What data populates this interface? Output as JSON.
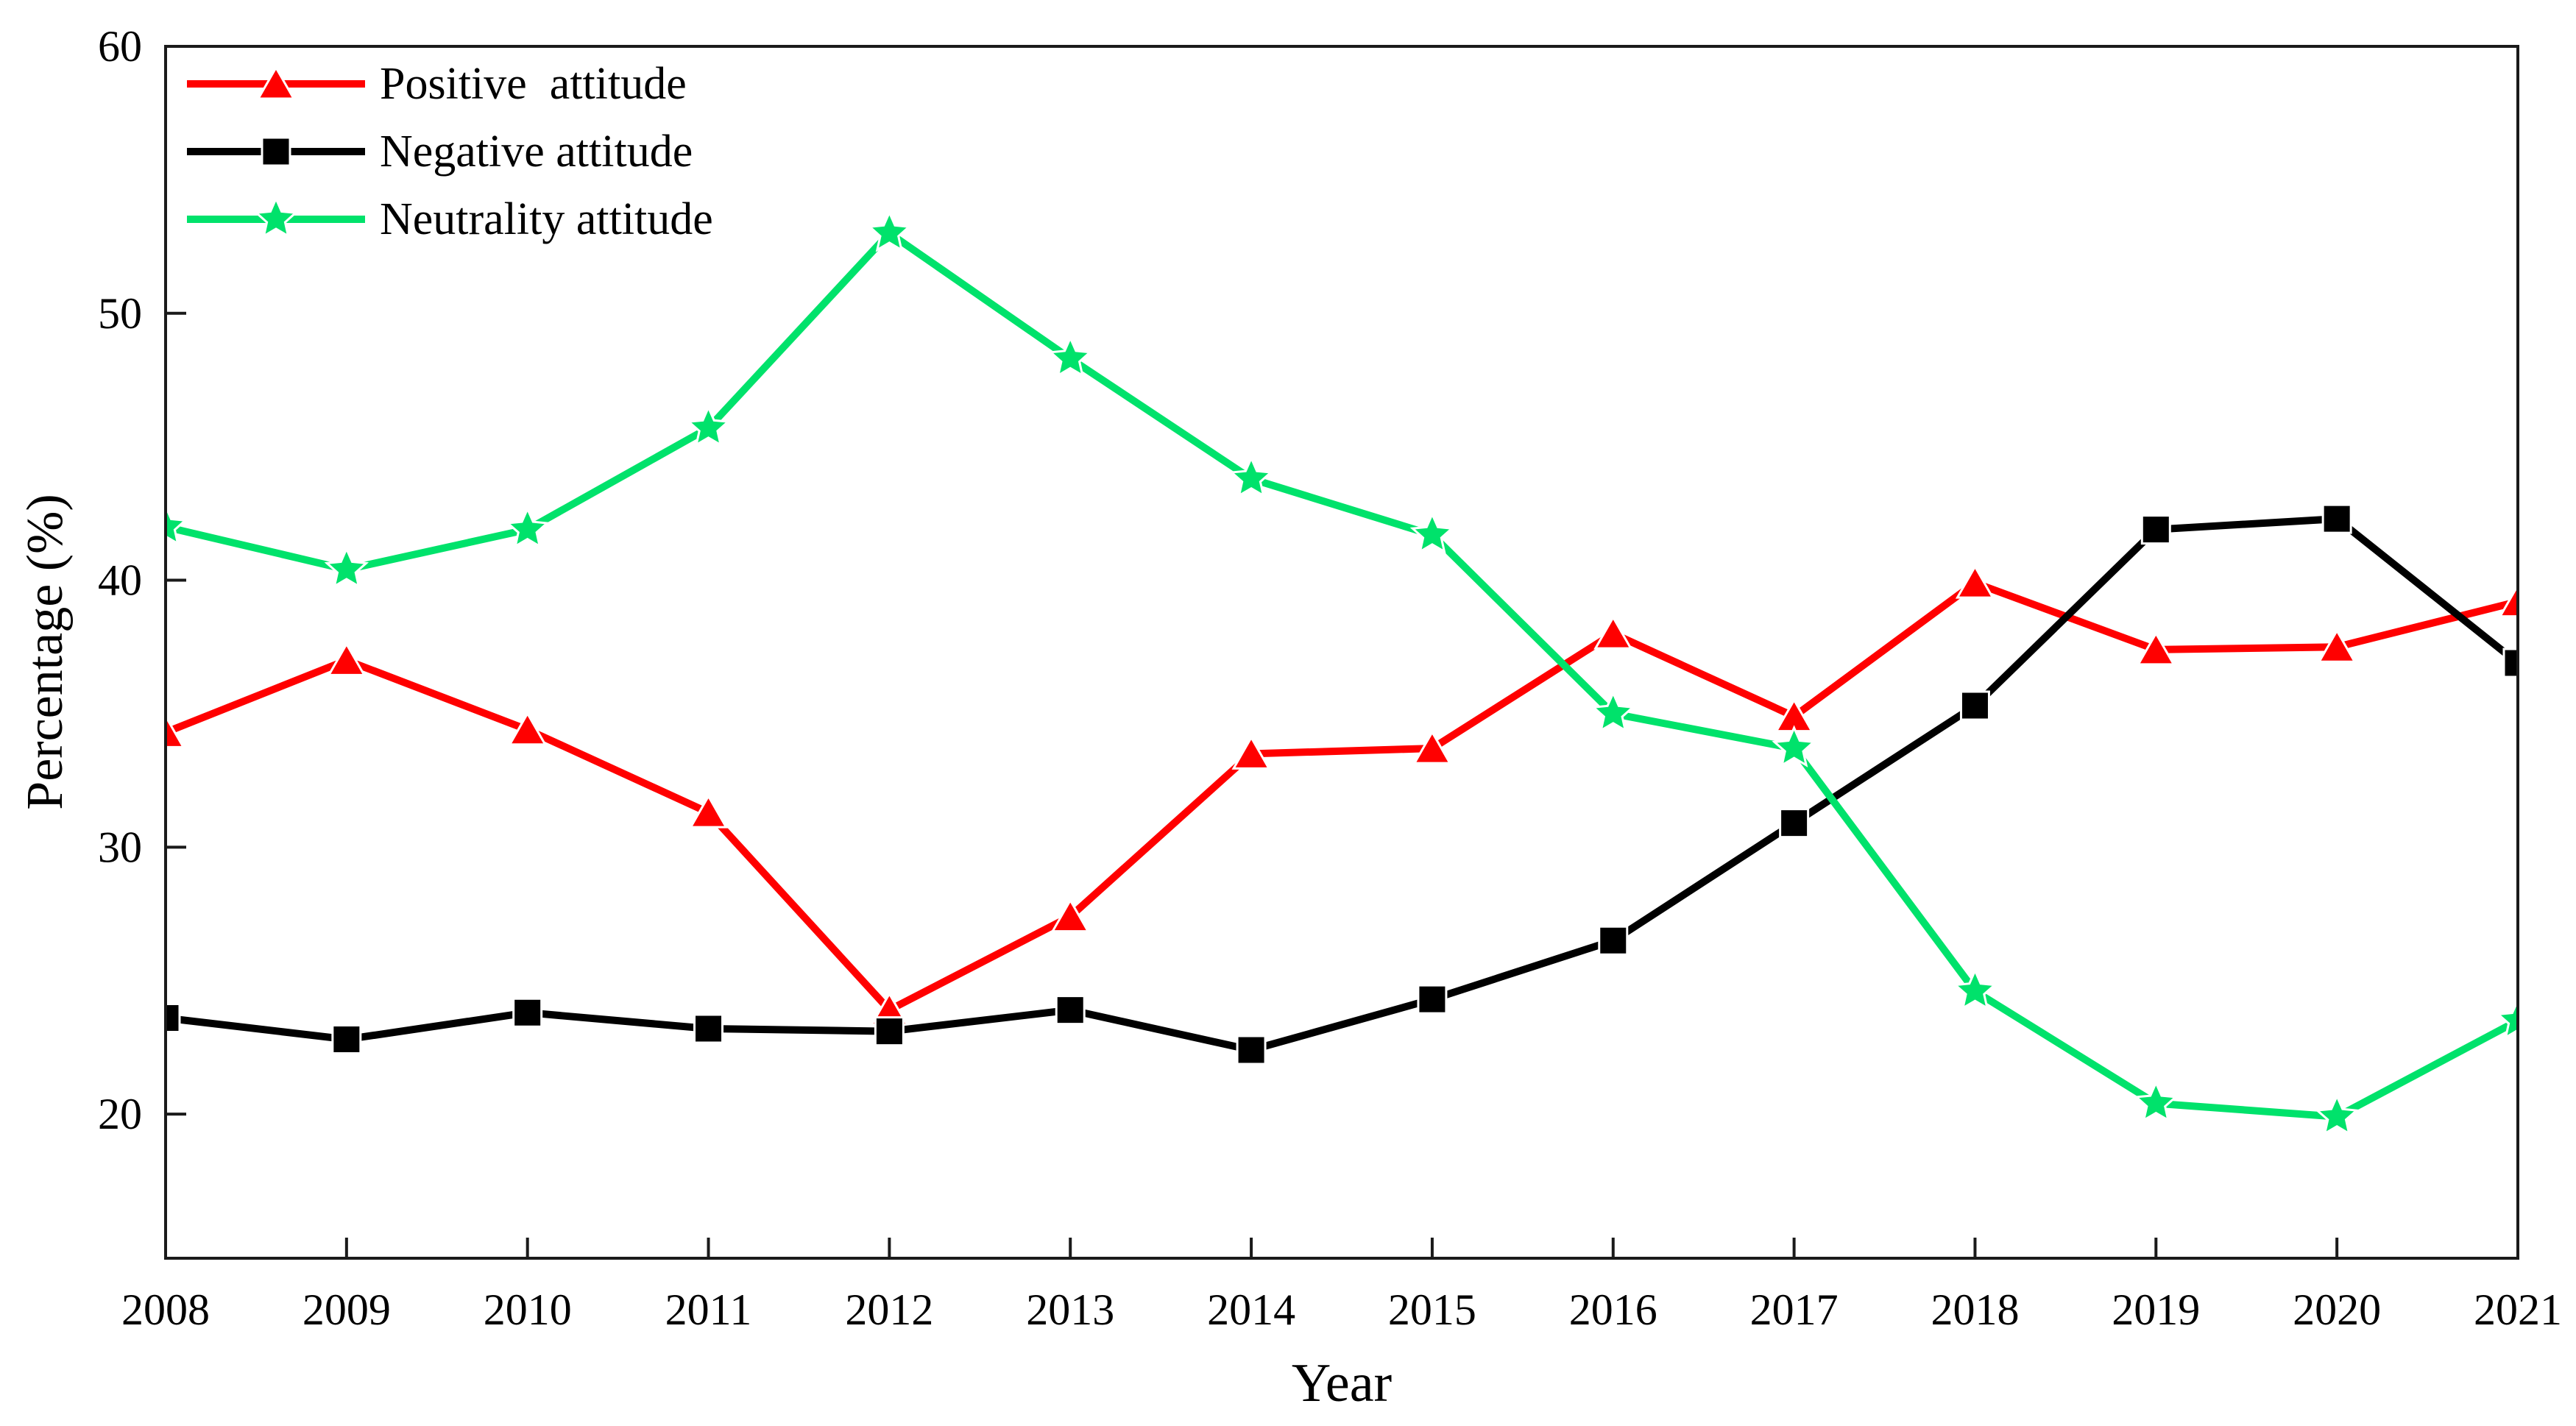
{
  "figure": {
    "background": "#ffffff",
    "axis_color": "#1a1a1a",
    "text_color": "#000000"
  },
  "chart_data": {
    "type": "line",
    "title": "",
    "xlabel": "Year",
    "ylabel": "Percentage (%)",
    "grid": false,
    "legend_position": "top-left-inside",
    "x": [
      2008,
      2009,
      2010,
      2011,
      2012,
      2013,
      2014,
      2015,
      2016,
      2017,
      2018,
      2019,
      2020,
      2021
    ],
    "x_tick_labels": [
      "2008",
      "2009",
      "2010",
      "2011",
      "2012",
      "2013",
      "2014",
      "2015",
      "2016",
      "2017",
      "2018",
      "2019",
      "2020",
      "2021"
    ],
    "ylim": [
      14.6,
      60
    ],
    "yticks": [
      20,
      30,
      40,
      50,
      60
    ],
    "ytick_labels": [
      "20",
      "30",
      "40",
      "50",
      "60"
    ],
    "series": [
      {
        "name": "Positive  attitude",
        "color": "#ff0000",
        "marker": "triangle",
        "values": [
          34.3,
          37.0,
          34.4,
          31.3,
          23.9,
          27.4,
          33.5,
          33.7,
          38.0,
          34.9,
          39.9,
          37.4,
          37.5,
          39.2
        ]
      },
      {
        "name": "Negative attitude",
        "color": "#000000",
        "marker": "square",
        "values": [
          23.6,
          22.8,
          23.8,
          23.2,
          23.1,
          23.9,
          22.4,
          24.3,
          26.5,
          30.9,
          35.3,
          41.9,
          42.3,
          36.9
        ]
      },
      {
        "name": "Neutrality attitude",
        "color": "#00e26b",
        "marker": "star",
        "values": [
          42.0,
          40.4,
          41.9,
          45.7,
          53.0,
          48.3,
          43.8,
          41.7,
          35.0,
          33.7,
          24.6,
          20.4,
          19.9,
          23.5
        ]
      }
    ]
  }
}
